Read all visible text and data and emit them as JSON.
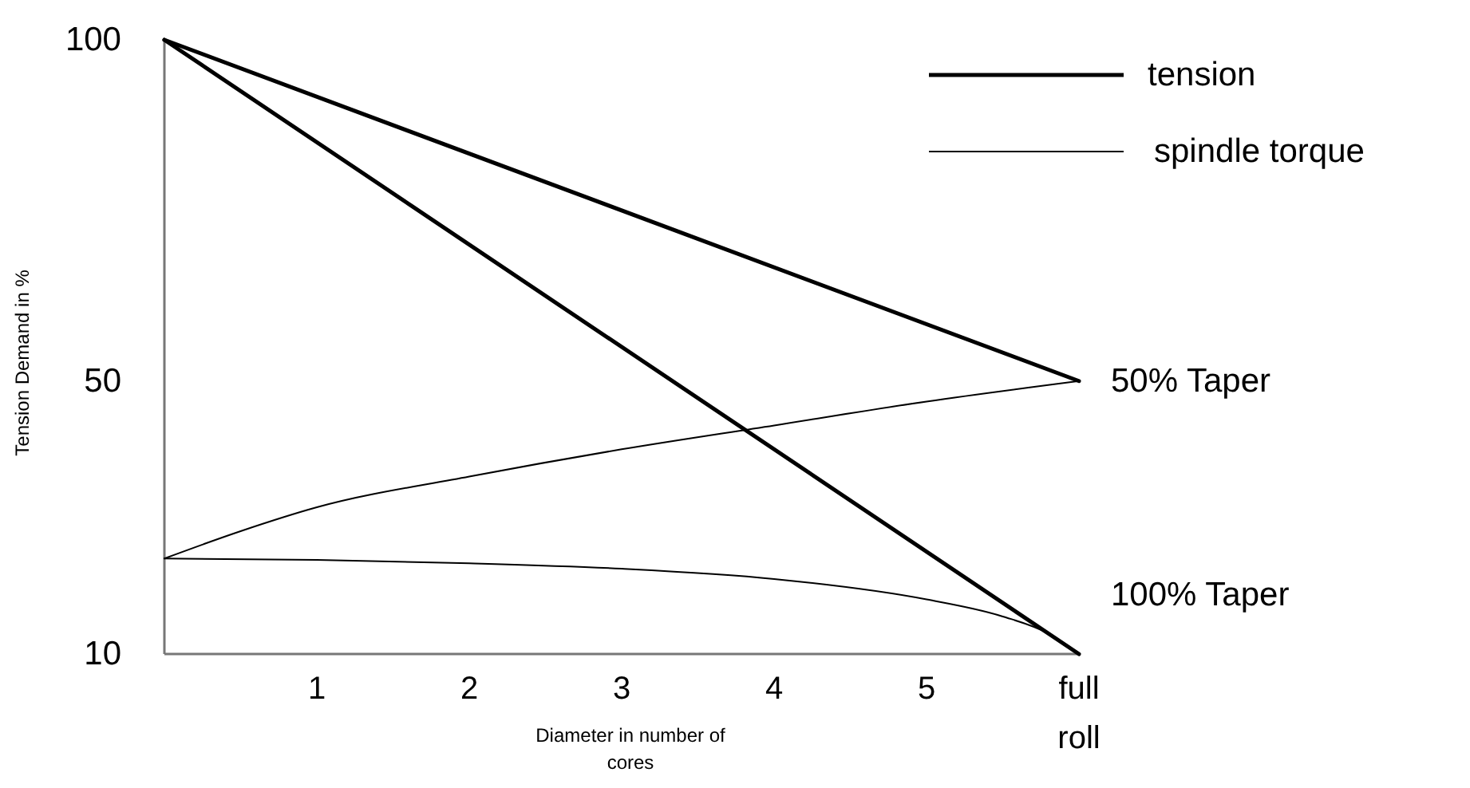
{
  "chart_data": {
    "type": "line",
    "xlabel": "Diameter  in number of cores",
    "ylabel": "Tension Demand in %",
    "xlim": [
      0,
      6
    ],
    "xticks": [
      1,
      2,
      3,
      4,
      5,
      {
        "value": 6,
        "label": "full roll"
      }
    ],
    "ylim": [
      10,
      100
    ],
    "yticks": [
      10,
      50,
      100
    ],
    "series": [
      {
        "name": "tension",
        "color": "#000000",
        "x": [
          0,
          6
        ],
        "values": [
          100,
          50
        ]
      },
      {
        "color": "#000000",
        "x": [
          0,
          6
        ],
        "values": [
          100,
          10
        ]
      },
      {
        "name": "spindle torque",
        "color": "#000000",
        "x": [
          0,
          0.5,
          1,
          2,
          3,
          4,
          5,
          6
        ],
        "values": [
          24,
          28,
          31.5,
          36,
          40,
          43.5,
          47,
          50
        ]
      },
      {
        "color": "#000000",
        "x": [
          0,
          1,
          2,
          3,
          4,
          5,
          5.5,
          5.8,
          6
        ],
        "values": [
          24,
          23.8,
          23.3,
          22.5,
          21,
          18,
          15.5,
          13,
          10
        ]
      }
    ],
    "annotations": [
      {
        "text": "50% Taper",
        "x": 6,
        "y": 50
      },
      {
        "text": "100% Taper",
        "x": 6,
        "y": 10
      }
    ],
    "legend": "top right",
    "grid": false,
    "line_style": "solid",
    "marker": "none"
  }
}
